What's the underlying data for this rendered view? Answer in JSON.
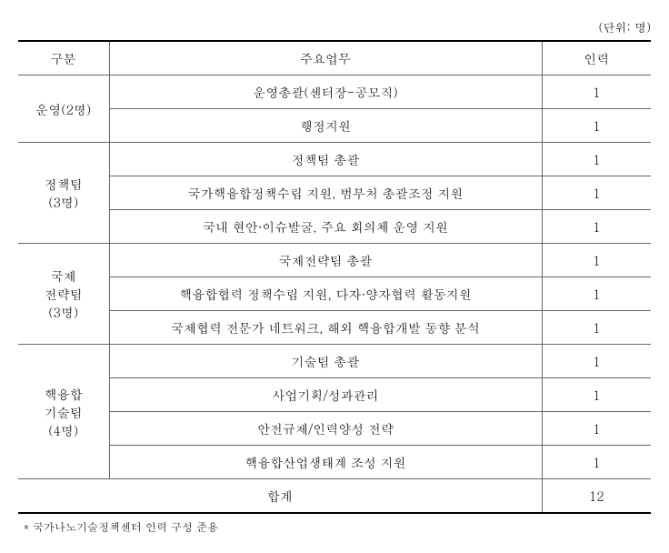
{
  "unit_label": "(단위: 명)",
  "columns": {
    "category": "구분",
    "task": "주요업무",
    "count": "인력"
  },
  "groups": [
    {
      "category": "운영(2명)",
      "rows": [
        {
          "task": "운영총괄(센터장-공모직)",
          "count": "1"
        },
        {
          "task": "행정지원",
          "count": "1"
        }
      ]
    },
    {
      "category": "정책팀\n(3명)",
      "rows": [
        {
          "task": "정책팀 총괄",
          "count": "1"
        },
        {
          "task": "국가핵융합정책수립 지원, 범부처 총괄조정 지원",
          "count": "1"
        },
        {
          "task": "국내 현안·이슈발굴, 주요 회의체 운영 지원",
          "count": "1"
        }
      ]
    },
    {
      "category": "국제\n전략팀\n(3명)",
      "rows": [
        {
          "task": "국제전략팀 총괄",
          "count": "1"
        },
        {
          "task": "핵융합협력 정책수립 지원, 다자·양자협력 활동지원",
          "count": "1"
        },
        {
          "task": "국제협력 전문가 네트워크, 해외 핵융합개발 동향 분석",
          "count": "1"
        }
      ]
    },
    {
      "category": "핵융합\n기술팀\n(4명)",
      "rows": [
        {
          "task": "기술팀 총괄",
          "count": "1"
        },
        {
          "task": "사업기획/성과관리",
          "count": "1"
        },
        {
          "task": "안전규제/인력양성 전략",
          "count": "1"
        },
        {
          "task": "핵융합산업생태계 조성 지원",
          "count": "1"
        }
      ]
    }
  ],
  "total": {
    "label": "합계",
    "count": "12"
  },
  "footnote": "* 국가나노기술정책센터 인력 구성 준용"
}
